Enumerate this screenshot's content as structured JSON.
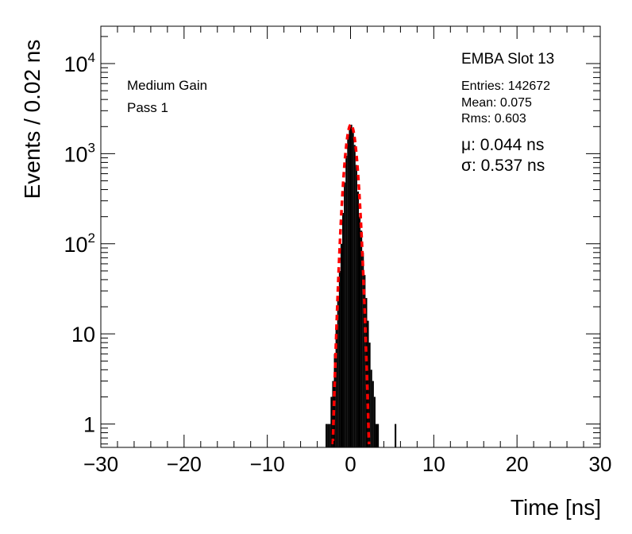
{
  "chart_data": {
    "type": "histogram",
    "title": "",
    "xlabel": "Time [ns]",
    "ylabel": "Events / 0.02 ns",
    "xlim": [
      -30,
      30
    ],
    "ylim": [
      0.55,
      26000
    ],
    "yscale": "log",
    "grid": false,
    "legend": "none",
    "x_ticks": [
      -30,
      -20,
      -10,
      0,
      10,
      20,
      30
    ],
    "x_tick_labels": [
      "−30",
      "−20",
      "−10",
      "0",
      "10",
      "20",
      "30"
    ],
    "y_ticks": [
      {
        "value": 1,
        "base": "1",
        "exp": ""
      },
      {
        "value": 10,
        "base": "10",
        "exp": ""
      },
      {
        "value": 100,
        "base": "10",
        "exp": "2"
      },
      {
        "value": 1000,
        "base": "10",
        "exp": "3"
      },
      {
        "value": 10000,
        "base": "10",
        "exp": "4"
      }
    ],
    "annotations": {
      "gain": "Medium Gain",
      "pass": "Pass 1",
      "module": "EMBA Slot 13",
      "entries": "Entries: 142672",
      "mean": "Mean: 0.075",
      "rms": "Rms: 0.603",
      "mu": "μ: 0.044 ns",
      "sigma": "σ: 0.537 ns"
    },
    "series": [
      {
        "kind": "histogram",
        "color": "#000000",
        "points": [
          [
            -2.9,
            1
          ],
          [
            -2.7,
            1
          ],
          [
            -2.5,
            1
          ],
          [
            -2.3,
            2
          ],
          [
            -2.1,
            3
          ],
          [
            -1.9,
            6
          ],
          [
            -1.7,
            12
          ],
          [
            -1.5,
            25
          ],
          [
            -1.3,
            50
          ],
          [
            -1.1,
            100
          ],
          [
            -0.9,
            220
          ],
          [
            -0.7,
            480
          ],
          [
            -0.5,
            950
          ],
          [
            -0.3,
            1550
          ],
          [
            -0.1,
            2050
          ],
          [
            0.1,
            2100
          ],
          [
            0.3,
            1800
          ],
          [
            0.5,
            1250
          ],
          [
            0.7,
            750
          ],
          [
            0.9,
            380
          ],
          [
            1.1,
            200
          ],
          [
            1.3,
            140
          ],
          [
            1.5,
            80
          ],
          [
            1.7,
            45
          ],
          [
            1.9,
            25
          ],
          [
            2.1,
            14
          ],
          [
            2.3,
            8
          ],
          [
            2.5,
            4
          ],
          [
            2.7,
            3
          ],
          [
            2.9,
            2
          ],
          [
            3.1,
            1
          ],
          [
            3.3,
            1
          ],
          [
            5.4,
            1
          ]
        ]
      },
      {
        "kind": "gaussian-fit",
        "color": "#ff0000",
        "mu": 0.044,
        "sigma": 0.537,
        "amplitude": 2100
      }
    ]
  }
}
